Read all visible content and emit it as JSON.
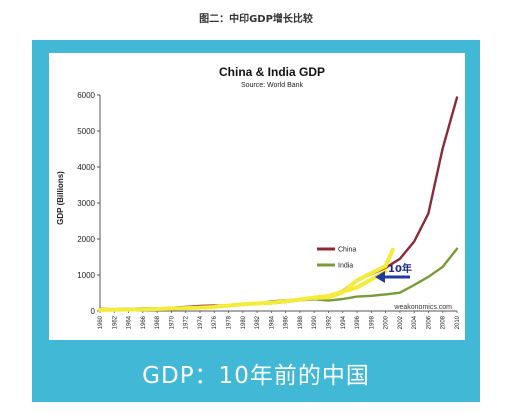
{
  "caption": "图二：中印GDP增长比较",
  "bottom_text": "GDP：10年前的中国",
  "annotation": "10年",
  "watermark": "weakonomics.com",
  "chart_data": {
    "type": "line",
    "title": "China & India GDP",
    "subtitle": "Source: World Bank",
    "ylabel": "GDP (Billions)",
    "xlabel": "",
    "ylim": [
      0,
      6000
    ],
    "xlim": [
      1960,
      2010
    ],
    "yticks": [
      0,
      1000,
      2000,
      3000,
      4000,
      5000,
      6000
    ],
    "xticks": [
      1960,
      1962,
      1964,
      1966,
      1968,
      1970,
      1972,
      1974,
      1976,
      1978,
      1980,
      1982,
      1984,
      1986,
      1988,
      1990,
      1992,
      1994,
      1996,
      1998,
      2000,
      2002,
      2004,
      2006,
      2008,
      2010
    ],
    "grid": false,
    "legend_position": "center-right",
    "series": [
      {
        "name": "China",
        "color": "#8c2a36",
        "x": [
          1960,
          1962,
          1964,
          1966,
          1968,
          1970,
          1972,
          1974,
          1976,
          1978,
          1980,
          1982,
          1984,
          1986,
          1988,
          1990,
          1992,
          1994,
          1996,
          1998,
          2000,
          2002,
          2004,
          2006,
          2008,
          2010
        ],
        "values": [
          60,
          50,
          60,
          70,
          70,
          90,
          110,
          140,
          150,
          150,
          190,
          205,
          260,
          300,
          310,
          390,
          420,
          560,
          860,
          1020,
          1200,
          1450,
          1930,
          2710,
          4520,
          5930
        ]
      },
      {
        "name": "India",
        "color": "#7a9a3a",
        "x": [
          1960,
          1962,
          1964,
          1966,
          1968,
          1970,
          1972,
          1974,
          1976,
          1978,
          1980,
          1982,
          1984,
          1986,
          1988,
          1990,
          1992,
          1994,
          1996,
          1998,
          2000,
          2002,
          2004,
          2006,
          2008,
          2010
        ],
        "values": [
          37,
          42,
          56,
          46,
          53,
          62,
          71,
          99,
          102,
          137,
          189,
          201,
          212,
          248,
          296,
          326,
          288,
          333,
          399,
          421,
          460,
          507,
          721,
          949,
          1224,
          1730
        ]
      },
      {
        "color": "#f5ec3a",
        "x": [
          1960,
          1964,
          1968,
          1972,
          1976,
          1980,
          1984,
          1988,
          1992,
          1996,
          2000
        ],
        "values": [
          30,
          40,
          55,
          80,
          110,
          190,
          230,
          320,
          420,
          650,
          1100
        ]
      },
      {
        "color": "#f5ec3a",
        "x": [
          1990,
          1992,
          1994,
          1996,
          1998,
          2000,
          2001
        ],
        "values": [
          360,
          380,
          520,
          850,
          1050,
          1250,
          1700
        ]
      }
    ]
  }
}
